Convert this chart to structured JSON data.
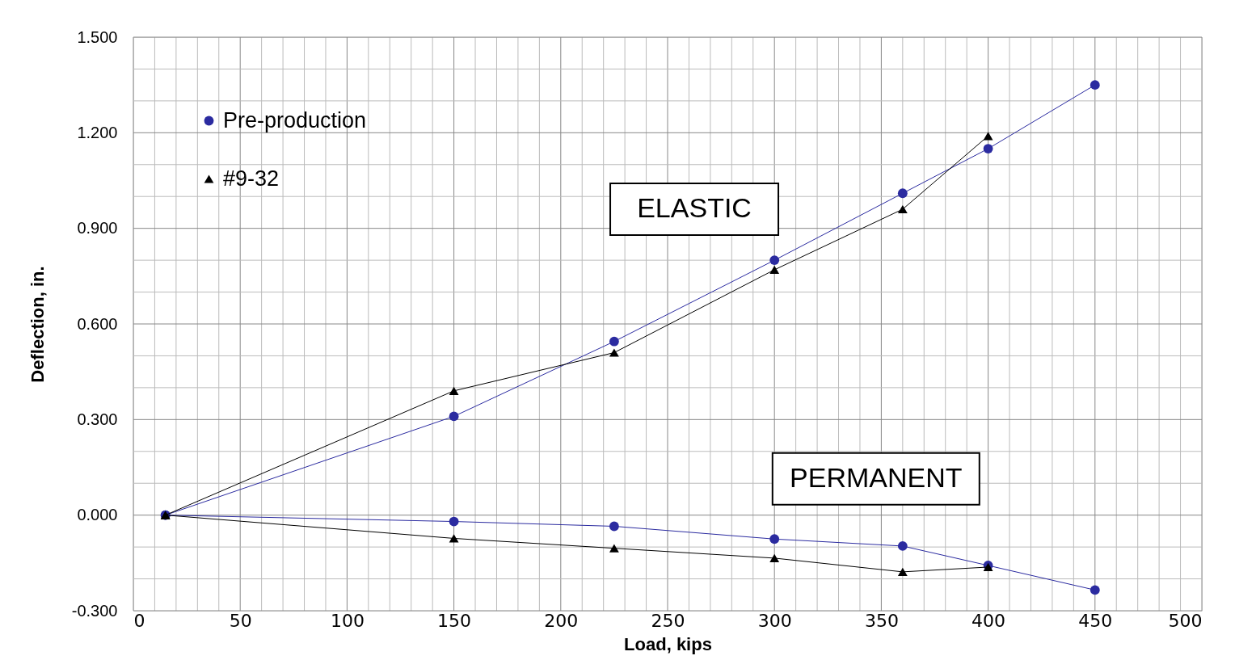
{
  "chart_data": {
    "type": "line",
    "xlabel": "Load, kips",
    "ylabel": "Deflection, in.",
    "series": [
      {
        "name": "Pre-production",
        "color": "#2b2ba0",
        "marker": "circle",
        "x": [
          15,
          150,
          225,
          300,
          360,
          400,
          450
        ],
        "values": [
          0,
          0.31,
          0.545,
          0.8,
          1.01,
          1.15,
          1.35
        ]
      },
      {
        "color": "#2b2ba0",
        "marker": "circle",
        "x": [
          15,
          150,
          225,
          300,
          360,
          400,
          450
        ],
        "values": [
          0,
          -0.02,
          -0.035,
          -0.075,
          -0.097,
          -0.158,
          -0.235
        ]
      },
      {
        "name": "#9-32",
        "color": "#000000",
        "marker": "triangle",
        "x": [
          15,
          150,
          225,
          300,
          360,
          400
        ],
        "values": [
          0,
          0.39,
          0.51,
          0.77,
          0.96,
          1.19
        ]
      },
      {
        "color": "#000000",
        "marker": "triangle",
        "x": [
          15,
          150,
          225,
          300,
          360,
          400
        ],
        "values": [
          0,
          -0.073,
          -0.104,
          -0.135,
          -0.178,
          -0.163
        ]
      }
    ],
    "xlim": [
      0,
      500
    ],
    "ylim": [
      -0.3,
      1.5
    ],
    "xticks": [
      0,
      50,
      100,
      150,
      200,
      250,
      300,
      350,
      400,
      450,
      500
    ],
    "yticks": [
      {
        "value": -0.3,
        "label": "-0.300"
      },
      {
        "value": 0,
        "label": "0.000"
      },
      {
        "value": 0.3,
        "label": "0.300"
      },
      {
        "value": 0.6,
        "label": "0.600"
      },
      {
        "value": 0.9,
        "label": "0.900"
      },
      {
        "value": 1.2,
        "label": "1.200"
      },
      {
        "value": 1.5,
        "label": "1.500"
      }
    ],
    "annotations": [
      "ELASTIC",
      "PERMANENT"
    ],
    "grid": true,
    "legend": "top left",
    "line_style": "solid"
  }
}
